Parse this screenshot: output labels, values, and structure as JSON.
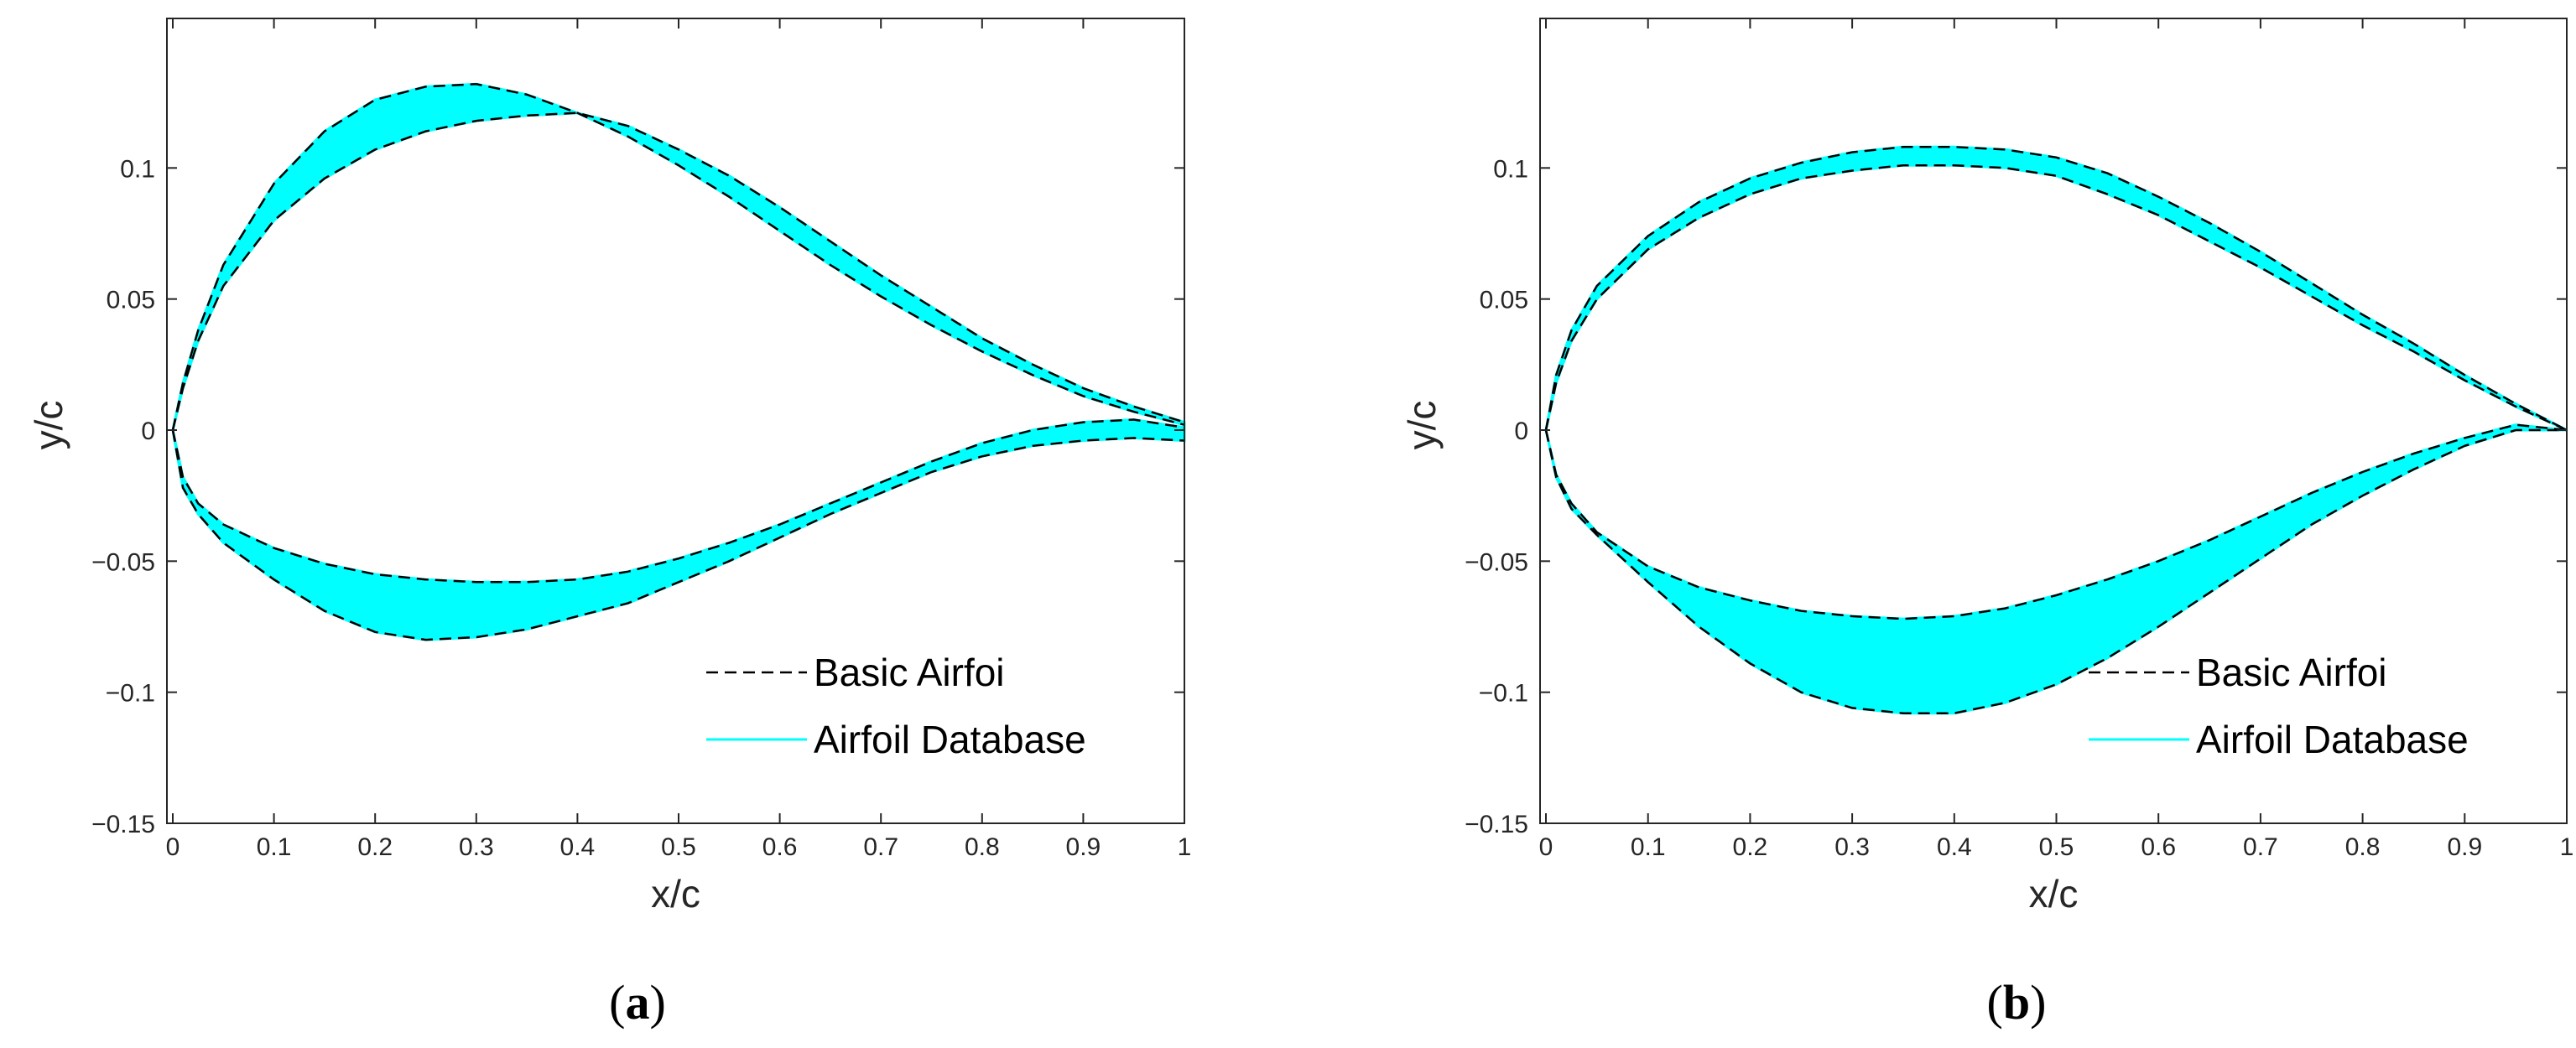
{
  "colors": {
    "band": "#00ffff",
    "basic_line": "#000000",
    "axes": "#262626"
  },
  "chart_data": [
    {
      "panel": "a",
      "type": "area",
      "xlabel": "x/c",
      "ylabel": "y/c",
      "xlim": [
        0,
        1
      ],
      "ylim": [
        -0.15,
        0.15
      ],
      "xticks": [
        "0",
        "0.1",
        "0.2",
        "0.3",
        "0.4",
        "0.5",
        "0.6",
        "0.7",
        "0.8",
        "0.9",
        "1"
      ],
      "yticks": [
        "-0.15",
        "-0.1",
        "-0.05",
        "0",
        "0.05",
        "0.1"
      ],
      "legend": {
        "position": "bottom-right",
        "entries": [
          "Basic Airfoi",
          "Airfoil Database"
        ]
      },
      "grid": false,
      "x": [
        0,
        0.01,
        0.025,
        0.05,
        0.1,
        0.15,
        0.2,
        0.25,
        0.3,
        0.35,
        0.4,
        0.45,
        0.5,
        0.55,
        0.6,
        0.65,
        0.7,
        0.75,
        0.8,
        0.85,
        0.9,
        0.95,
        1.0
      ],
      "series": [
        {
          "name": "Basic Airfoi",
          "role": "upper-outer",
          "values": [
            0,
            0.018,
            0.038,
            0.063,
            0.094,
            0.114,
            0.126,
            0.131,
            0.132,
            0.128,
            0.121,
            0.112,
            0.101,
            0.089,
            0.076,
            0.063,
            0.051,
            0.04,
            0.03,
            0.021,
            0.013,
            0.007,
            0.002
          ]
        },
        {
          "name": "Basic Airfoi",
          "role": "upper-inner",
          "values": [
            0,
            0.016,
            0.034,
            0.055,
            0.08,
            0.096,
            0.107,
            0.114,
            0.118,
            0.12,
            0.121,
            0.116,
            0.107,
            0.097,
            0.085,
            0.072,
            0.059,
            0.047,
            0.035,
            0.025,
            0.016,
            0.009,
            0.003
          ]
        },
        {
          "name": "Basic Airfoi",
          "role": "lower-inner",
          "values": [
            0,
            -0.018,
            -0.028,
            -0.036,
            -0.045,
            -0.051,
            -0.055,
            -0.057,
            -0.058,
            -0.058,
            -0.057,
            -0.054,
            -0.049,
            -0.043,
            -0.036,
            -0.028,
            -0.02,
            -0.012,
            -0.005,
            0.0,
            0.003,
            0.004,
            0.001
          ]
        },
        {
          "name": "Basic Airfoi",
          "role": "lower-outer",
          "values": [
            0,
            -0.022,
            -0.032,
            -0.043,
            -0.057,
            -0.069,
            -0.077,
            -0.08,
            -0.079,
            -0.076,
            -0.071,
            -0.066,
            -0.058,
            -0.05,
            -0.041,
            -0.032,
            -0.024,
            -0.016,
            -0.01,
            -0.006,
            -0.004,
            -0.003,
            -0.004
          ]
        }
      ]
    },
    {
      "panel": "b",
      "type": "area",
      "xlabel": "x/c",
      "ylabel": "y/c",
      "xlim": [
        0,
        1
      ],
      "ylim": [
        -0.15,
        0.15
      ],
      "xticks": [
        "0",
        "0.1",
        "0.2",
        "0.3",
        "0.4",
        "0.5",
        "0.6",
        "0.7",
        "0.8",
        "0.9",
        "1"
      ],
      "yticks": [
        "-0.15",
        "-0.1",
        "-0.05",
        "0",
        "0.05",
        "0.1"
      ],
      "legend": {
        "position": "bottom-right",
        "entries": [
          "Basic Airfoi",
          "Airfoil Database"
        ]
      },
      "grid": false,
      "x": [
        0,
        0.01,
        0.025,
        0.05,
        0.1,
        0.15,
        0.2,
        0.25,
        0.3,
        0.35,
        0.4,
        0.45,
        0.5,
        0.55,
        0.6,
        0.65,
        0.7,
        0.75,
        0.8,
        0.85,
        0.9,
        0.95,
        1.0
      ],
      "series": [
        {
          "name": "Basic Airfoi",
          "role": "upper-outer",
          "values": [
            0,
            0.021,
            0.038,
            0.055,
            0.074,
            0.087,
            0.096,
            0.102,
            0.106,
            0.108,
            0.108,
            0.107,
            0.104,
            0.098,
            0.089,
            0.079,
            0.068,
            0.056,
            0.044,
            0.033,
            0.021,
            0.01,
            0.0
          ]
        },
        {
          "name": "Basic Airfoi",
          "role": "upper-inner",
          "values": [
            0,
            0.018,
            0.034,
            0.05,
            0.069,
            0.081,
            0.09,
            0.096,
            0.099,
            0.101,
            0.101,
            0.1,
            0.097,
            0.09,
            0.082,
            0.072,
            0.062,
            0.051,
            0.04,
            0.03,
            0.019,
            0.009,
            0.0
          ]
        },
        {
          "name": "Basic Airfoi",
          "role": "lower-inner",
          "values": [
            0,
            -0.017,
            -0.028,
            -0.039,
            -0.052,
            -0.06,
            -0.065,
            -0.069,
            -0.071,
            -0.072,
            -0.071,
            -0.068,
            -0.063,
            -0.057,
            -0.05,
            -0.042,
            -0.033,
            -0.024,
            -0.016,
            -0.009,
            -0.003,
            0.002,
            0.0
          ]
        },
        {
          "name": "Basic Airfoi",
          "role": "lower-outer",
          "values": [
            0,
            -0.018,
            -0.03,
            -0.04,
            -0.058,
            -0.075,
            -0.089,
            -0.1,
            -0.106,
            -0.108,
            -0.108,
            -0.104,
            -0.097,
            -0.087,
            -0.075,
            -0.062,
            -0.049,
            -0.036,
            -0.025,
            -0.015,
            -0.006,
            0.0,
            0.0
          ]
        }
      ]
    }
  ],
  "captions": {
    "a": {
      "open": "(",
      "letter": "a",
      "close": ")"
    },
    "b": {
      "open": "(",
      "letter": "b",
      "close": ")"
    }
  }
}
